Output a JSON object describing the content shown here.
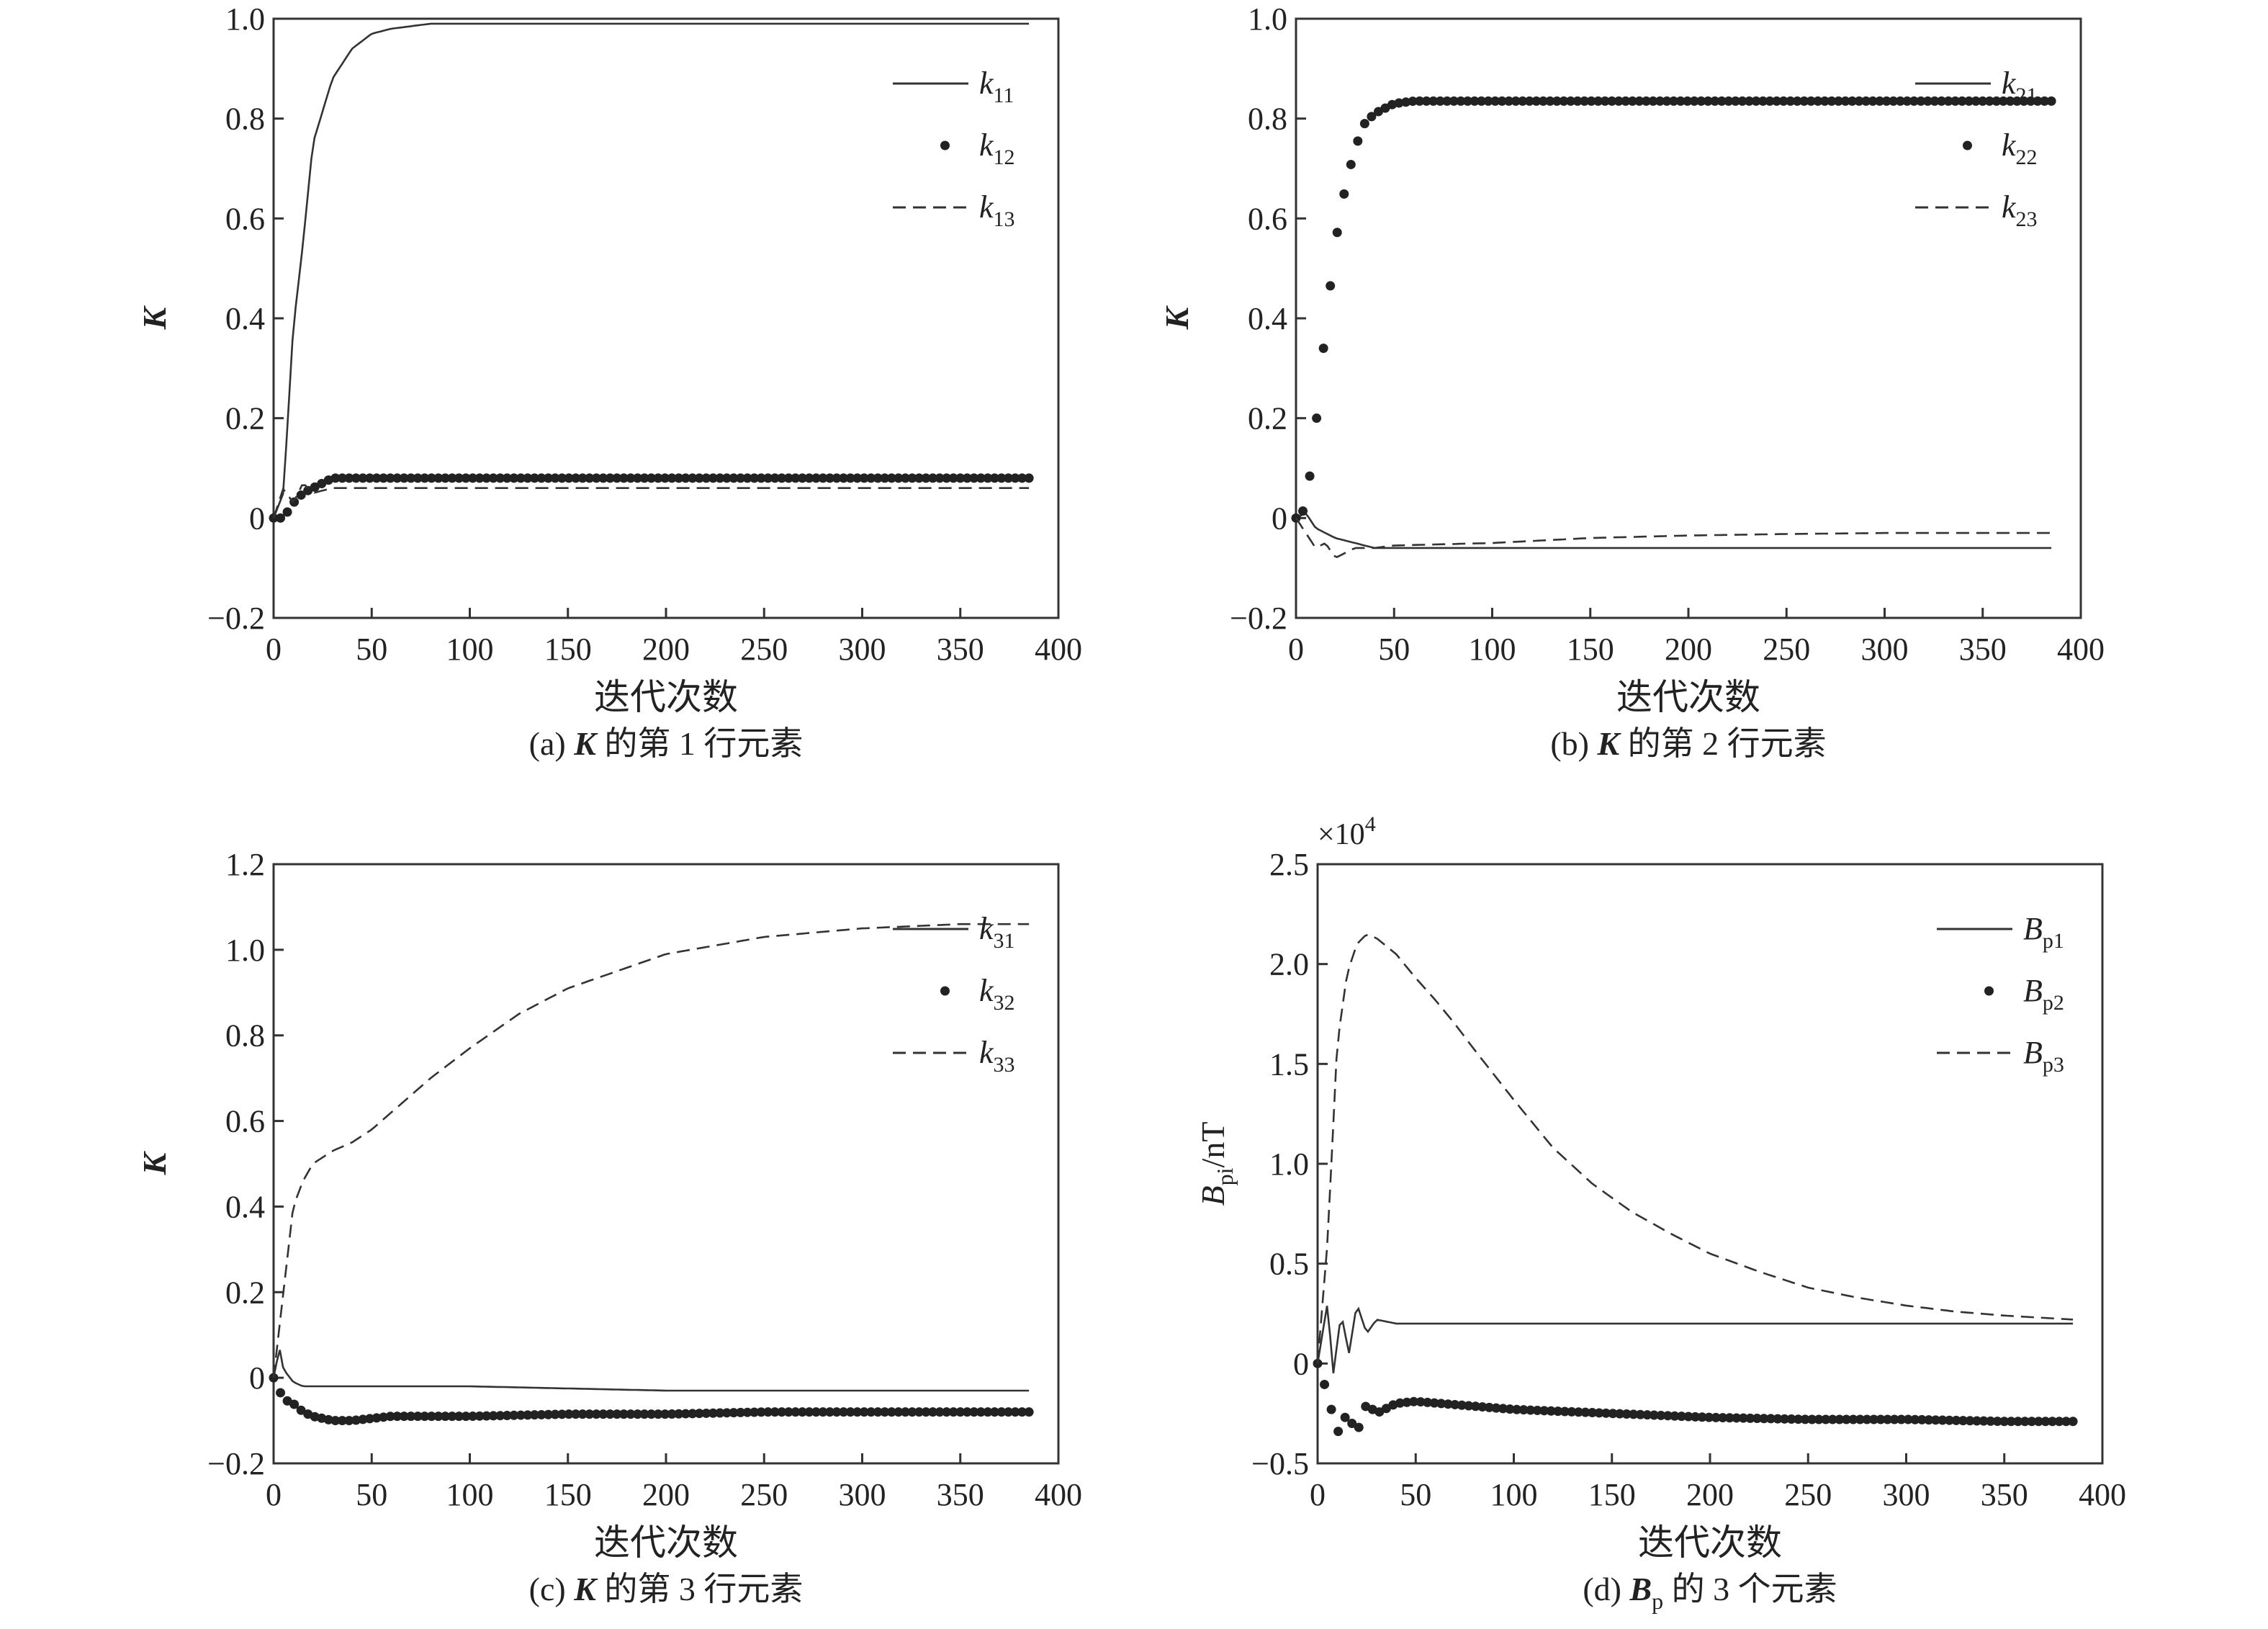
{
  "chart_data": [
    {
      "type": "line",
      "panel": "a",
      "caption": {
        "prefix": "(a) ",
        "bold": "K",
        "suffix": " 的第 1 行元素"
      },
      "xlabel": "迭代次数",
      "ylabel": "K",
      "xlim": [
        0,
        400
      ],
      "ylim": [
        -0.2,
        1.0
      ],
      "xticks": [
        "0",
        "50",
        "100",
        "150",
        "200",
        "250",
        "300",
        "350",
        "400"
      ],
      "yticks": [
        "−0.2",
        "0",
        "0.2",
        "0.4",
        "0.6",
        "0.8",
        "1.0"
      ],
      "legend_position": "top-right",
      "series": [
        {
          "name": "k11",
          "style": "solid",
          "x": [
            0,
            5,
            10,
            15,
            20,
            30,
            40,
            50,
            60,
            80,
            100,
            150,
            200,
            250,
            300,
            350,
            385
          ],
          "y": [
            0,
            0.05,
            0.38,
            0.55,
            0.75,
            0.88,
            0.94,
            0.97,
            0.98,
            0.99,
            0.99,
            0.99,
            0.99,
            0.99,
            0.99,
            0.99,
            0.99
          ]
        },
        {
          "name": "k12",
          "style": "dots",
          "x": [
            0,
            5,
            10,
            15,
            20,
            25,
            30,
            40,
            50,
            100,
            150,
            200,
            250,
            300,
            350,
            385
          ],
          "y": [
            0,
            0.0,
            0.03,
            0.05,
            0.06,
            0.07,
            0.08,
            0.08,
            0.08,
            0.08,
            0.08,
            0.08,
            0.08,
            0.08,
            0.08,
            0.08
          ]
        },
        {
          "name": "k13",
          "style": "dashed",
          "x": [
            0,
            5,
            10,
            15,
            20,
            30,
            40,
            50,
            100,
            150,
            200,
            250,
            300,
            350,
            385
          ],
          "y": [
            0,
            0.06,
            0.03,
            0.07,
            0.05,
            0.06,
            0.06,
            0.06,
            0.06,
            0.06,
            0.06,
            0.06,
            0.06,
            0.06,
            0.06
          ]
        }
      ],
      "legend": [
        {
          "base": "k",
          "sub": "11"
        },
        {
          "base": "k",
          "sub": "12"
        },
        {
          "base": "k",
          "sub": "13"
        }
      ]
    },
    {
      "type": "line",
      "panel": "b",
      "caption": {
        "prefix": "(b) ",
        "bold": "K",
        "suffix": " 的第 2 行元素"
      },
      "xlabel": "迭代次数",
      "ylabel": "K",
      "xlim": [
        0,
        400
      ],
      "ylim": [
        -0.2,
        1.0
      ],
      "xticks": [
        "0",
        "50",
        "100",
        "150",
        "200",
        "250",
        "300",
        "350",
        "400"
      ],
      "yticks": [
        "−0.2",
        "0",
        "0.2",
        "0.4",
        "0.6",
        "0.8",
        "1.0"
      ],
      "legend_position": "top-right",
      "series": [
        {
          "name": "k21",
          "style": "solid",
          "x": [
            0,
            5,
            10,
            15,
            20,
            30,
            40,
            50,
            100,
            150,
            200,
            250,
            300,
            350,
            385
          ],
          "y": [
            0,
            0.01,
            -0.02,
            -0.03,
            -0.04,
            -0.05,
            -0.06,
            -0.06,
            -0.06,
            -0.06,
            -0.06,
            -0.06,
            -0.06,
            -0.06,
            -0.06
          ]
        },
        {
          "name": "k22",
          "style": "dots",
          "x": [
            0,
            5,
            10,
            15,
            20,
            25,
            30,
            35,
            40,
            50,
            60,
            80,
            100,
            150,
            200,
            250,
            300,
            350,
            385
          ],
          "y": [
            0,
            0.02,
            0.18,
            0.38,
            0.55,
            0.66,
            0.74,
            0.79,
            0.81,
            0.83,
            0.835,
            0.835,
            0.835,
            0.835,
            0.835,
            0.835,
            0.835,
            0.835,
            0.835
          ]
        },
        {
          "name": "k23",
          "style": "dashed",
          "x": [
            0,
            5,
            10,
            15,
            20,
            30,
            40,
            50,
            100,
            150,
            200,
            250,
            300,
            350,
            385
          ],
          "y": [
            0,
            -0.03,
            -0.06,
            -0.05,
            -0.08,
            -0.06,
            -0.06,
            -0.055,
            -0.05,
            -0.04,
            -0.035,
            -0.032,
            -0.03,
            -0.03,
            -0.03
          ]
        }
      ],
      "legend": [
        {
          "base": "k",
          "sub": "21"
        },
        {
          "base": "k",
          "sub": "22"
        },
        {
          "base": "k",
          "sub": "23"
        }
      ]
    },
    {
      "type": "line",
      "panel": "c",
      "caption": {
        "prefix": "(c) ",
        "bold": "K",
        "suffix": " 的第 3 行元素"
      },
      "xlabel": "迭代次数",
      "ylabel": "K",
      "xlim": [
        0,
        400
      ],
      "ylim": [
        -0.2,
        1.2
      ],
      "xticks": [
        "0",
        "50",
        "100",
        "150",
        "200",
        "250",
        "300",
        "350",
        "400"
      ],
      "yticks": [
        "−0.2",
        "0",
        "0.2",
        "0.4",
        "0.6",
        "0.8",
        "1.0",
        "1.2"
      ],
      "legend_position": "top-right",
      "series": [
        {
          "name": "k31",
          "style": "solid",
          "x": [
            0,
            3,
            5,
            10,
            15,
            20,
            40,
            100,
            200,
            300,
            385
          ],
          "y": [
            0,
            0.07,
            0.02,
            -0.01,
            -0.02,
            -0.02,
            -0.02,
            -0.02,
            -0.03,
            -0.03,
            -0.03
          ]
        },
        {
          "name": "k32",
          "style": "dots",
          "x": [
            0,
            5,
            10,
            15,
            20,
            30,
            40,
            60,
            100,
            150,
            200,
            250,
            300,
            350,
            385
          ],
          "y": [
            0,
            -0.05,
            -0.06,
            -0.08,
            -0.09,
            -0.1,
            -0.1,
            -0.09,
            -0.09,
            -0.085,
            -0.085,
            -0.08,
            -0.08,
            -0.08,
            -0.08
          ]
        },
        {
          "name": "k33",
          "style": "dashed",
          "x": [
            0,
            5,
            10,
            15,
            20,
            30,
            40,
            50,
            60,
            80,
            100,
            125,
            150,
            175,
            200,
            225,
            250,
            275,
            300,
            325,
            350,
            385
          ],
          "y": [
            0,
            0.2,
            0.4,
            0.46,
            0.5,
            0.53,
            0.55,
            0.58,
            0.62,
            0.7,
            0.77,
            0.85,
            0.91,
            0.95,
            0.99,
            1.01,
            1.03,
            1.04,
            1.05,
            1.055,
            1.06,
            1.06
          ]
        }
      ],
      "legend": [
        {
          "base": "k",
          "sub": "31"
        },
        {
          "base": "k",
          "sub": "32"
        },
        {
          "base": "k",
          "sub": "33"
        }
      ]
    },
    {
      "type": "line",
      "panel": "d",
      "caption": {
        "prefix": "(d) ",
        "bold": "B",
        "bold_sub": "p",
        "suffix": " 的 3 个元素"
      },
      "xlabel": "迭代次数",
      "ylabel": {
        "base": "B",
        "sub": "pi",
        "unit": "/nT"
      },
      "multiplier": "×10",
      "multiplier_exp": "4",
      "xlim": [
        0,
        400
      ],
      "ylim": [
        -0.5,
        2.5
      ],
      "xticks": [
        "0",
        "50",
        "100",
        "150",
        "200",
        "250",
        "300",
        "350",
        "400"
      ],
      "yticks": [
        "−0.5",
        "0",
        "0.5",
        "1.0",
        "1.5",
        "2.0",
        "2.5"
      ],
      "legend_position": "top-right",
      "series": [
        {
          "name": "Bp1",
          "style": "solid",
          "x": [
            0,
            5,
            8,
            12,
            16,
            20,
            25,
            30,
            40,
            50,
            100,
            150,
            200,
            250,
            300,
            350,
            385
          ],
          "y": [
            0,
            0.3,
            -0.05,
            0.25,
            0.05,
            0.3,
            0.15,
            0.22,
            0.2,
            0.2,
            0.2,
            0.2,
            0.2,
            0.2,
            0.2,
            0.2,
            0.2
          ]
        },
        {
          "name": "Bp2",
          "style": "dots",
          "x": [
            0,
            5,
            10,
            15,
            20,
            25,
            30,
            40,
            50,
            75,
            100,
            150,
            200,
            250,
            300,
            350,
            385
          ],
          "y": [
            0,
            -0.15,
            -0.35,
            -0.25,
            -0.35,
            -0.2,
            -0.25,
            -0.2,
            -0.19,
            -0.21,
            -0.23,
            -0.25,
            -0.27,
            -0.28,
            -0.28,
            -0.29,
            -0.29
          ]
        },
        {
          "name": "Bp3",
          "style": "dashed",
          "x": [
            0,
            5,
            10,
            15,
            20,
            25,
            30,
            40,
            50,
            60,
            70,
            80,
            100,
            120,
            140,
            160,
            180,
            200,
            225,
            250,
            275,
            300,
            325,
            350,
            385
          ],
          "y": [
            0,
            0.6,
            1.6,
            1.95,
            2.1,
            2.15,
            2.13,
            2.05,
            1.93,
            1.82,
            1.7,
            1.57,
            1.32,
            1.08,
            0.9,
            0.76,
            0.65,
            0.55,
            0.46,
            0.38,
            0.33,
            0.29,
            0.26,
            0.24,
            0.22
          ]
        }
      ],
      "legend": [
        {
          "base": "B",
          "sub": "p1"
        },
        {
          "base": "B",
          "sub": "p2"
        },
        {
          "base": "B",
          "sub": "p3"
        }
      ]
    }
  ]
}
